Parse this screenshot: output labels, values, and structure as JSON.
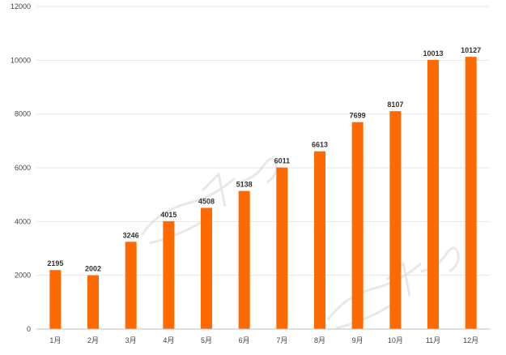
{
  "colors": {
    "bar": "#ff6a00"
  },
  "chart_data": {
    "type": "bar",
    "title": "",
    "xlabel": "",
    "ylabel": "",
    "categories": [
      "1月",
      "2月",
      "3月",
      "4月",
      "5月",
      "6月",
      "7月",
      "8月",
      "9月",
      "10月",
      "11月",
      "12月"
    ],
    "values": [
      2195,
      2002,
      3246,
      4015,
      4508,
      5138,
      6011,
      6613,
      7699,
      8107,
      10013,
      10127
    ],
    "ylim": [
      0,
      12000
    ],
    "yticks": [
      0,
      2000,
      4000,
      6000,
      8000,
      10000,
      12000
    ],
    "grid": true,
    "legend": "none",
    "data_labels": true
  }
}
